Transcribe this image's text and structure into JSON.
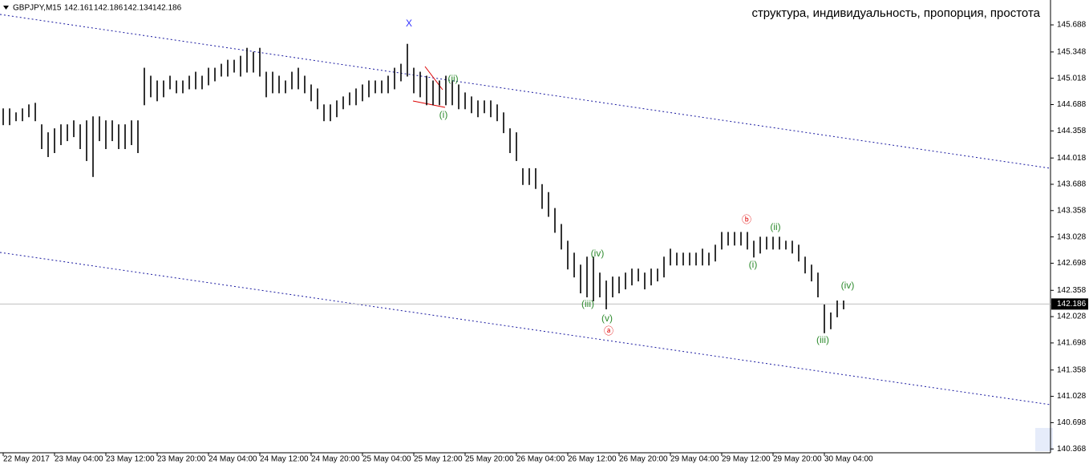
{
  "chart_data": {
    "type": "ohlc",
    "title": "структура, индивидуальность, пропорция, простота",
    "header": {
      "symbol": "GBPJPY,M15",
      "open": 142.161,
      "high": 142.186,
      "low": 142.134,
      "close": 142.186
    },
    "color": "#000000",
    "categories": [
      "22 May 2017",
      null,
      null,
      null,
      null,
      null,
      null,
      null,
      "23 May 04:00",
      null,
      null,
      null,
      null,
      null,
      null,
      null,
      "23 May 12:00",
      null,
      null,
      null,
      null,
      null,
      null,
      null,
      "23 May 20:00",
      null,
      null,
      null,
      null,
      null,
      null,
      null,
      "24 May 04:00",
      null,
      null,
      null,
      null,
      null,
      null,
      null,
      "24 May 12:00",
      null,
      null,
      null,
      null,
      null,
      null,
      null,
      "24 May 20:00",
      null,
      null,
      null,
      null,
      null,
      null,
      null,
      "25 May 04:00",
      null,
      null,
      null,
      null,
      null,
      null,
      null,
      "25 May 12:00",
      null,
      null,
      null,
      null,
      null,
      null,
      null,
      "25 May 20:00",
      null,
      null,
      null,
      null,
      null,
      null,
      null,
      "26 May 04:00",
      null,
      null,
      null,
      null,
      null,
      null,
      null,
      "26 May 12:00",
      null,
      null,
      null,
      null,
      null,
      null,
      null,
      "26 May 20:00",
      null,
      null,
      null,
      null,
      null,
      null,
      null,
      "29 May 04:00",
      null,
      null,
      null,
      null,
      null,
      null,
      null,
      "29 May 12:00",
      null,
      null,
      null,
      null,
      null,
      null,
      null,
      "29 May 20:00",
      null,
      null,
      null,
      null,
      null,
      null,
      null,
      "30 May 04:00",
      null,
      null,
      null
    ],
    "highs": [
      144.64,
      144.64,
      144.59,
      144.64,
      144.69,
      144.71,
      144.44,
      144.34,
      144.39,
      144.44,
      144.44,
      144.49,
      144.44,
      144.49,
      144.54,
      144.54,
      144.49,
      144.49,
      144.44,
      144.44,
      144.49,
      144.49,
      145.15,
      145.05,
      144.99,
      144.99,
      145.05,
      144.99,
      144.99,
      145.05,
      145.1,
      145.05,
      145.15,
      145.15,
      145.2,
      145.25,
      145.25,
      145.3,
      145.4,
      145.35,
      145.4,
      145.1,
      145.1,
      145.05,
      144.99,
      145.1,
      145.15,
      145.05,
      144.94,
      144.89,
      144.69,
      144.69,
      144.74,
      144.79,
      144.84,
      144.89,
      144.94,
      144.99,
      144.99,
      144.99,
      145.05,
      145.15,
      145.2,
      145.45,
      145.15,
      145.1,
      145.05,
      144.99,
      144.99,
      145.05,
      144.99,
      144.94,
      144.84,
      144.79,
      144.74,
      144.74,
      144.74,
      144.69,
      144.59,
      144.39,
      144.34,
      143.89,
      143.89,
      143.89,
      143.69,
      143.59,
      143.39,
      143.19,
      142.98,
      142.83,
      142.68,
      142.78,
      142.78,
      142.58,
      142.48,
      142.53,
      142.53,
      142.58,
      142.63,
      142.63,
      142.58,
      142.63,
      142.63,
      142.78,
      142.88,
      142.83,
      142.83,
      142.83,
      142.83,
      142.88,
      142.83,
      142.93,
      143.09,
      143.09,
      143.09,
      143.09,
      143.09,
      142.98,
      143.03,
      143.03,
      143.03,
      143.03,
      142.98,
      142.98,
      142.93,
      142.78,
      142.68,
      142.58,
      142.18,
      142.08,
      142.23,
      142.23
    ],
    "lows": [
      144.44,
      144.44,
      144.49,
      144.49,
      144.54,
      144.49,
      144.14,
      144.04,
      144.09,
      144.19,
      144.24,
      144.29,
      144.14,
      143.99,
      143.79,
      144.24,
      144.14,
      144.24,
      144.14,
      144.14,
      144.19,
      144.09,
      144.69,
      144.79,
      144.74,
      144.79,
      144.89,
      144.84,
      144.84,
      144.89,
      144.89,
      144.89,
      144.94,
      144.99,
      145.05,
      145.05,
      145.1,
      145.05,
      145.1,
      145.1,
      145.05,
      144.79,
      144.84,
      144.84,
      144.84,
      144.89,
      144.89,
      144.84,
      144.74,
      144.64,
      144.49,
      144.49,
      144.54,
      144.64,
      144.69,
      144.69,
      144.74,
      144.79,
      144.84,
      144.84,
      144.84,
      144.89,
      144.99,
      145.05,
      144.84,
      144.79,
      144.69,
      144.69,
      144.69,
      144.69,
      144.69,
      144.64,
      144.64,
      144.59,
      144.54,
      144.59,
      144.54,
      144.49,
      144.34,
      144.09,
      143.99,
      143.69,
      143.69,
      143.64,
      143.39,
      143.29,
      143.09,
      142.88,
      142.63,
      142.53,
      142.33,
      142.28,
      142.23,
      142.28,
      142.13,
      142.28,
      142.33,
      142.38,
      142.43,
      142.48,
      142.38,
      142.43,
      142.48,
      142.53,
      142.68,
      142.68,
      142.68,
      142.68,
      142.68,
      142.68,
      142.68,
      142.73,
      142.88,
      142.93,
      142.93,
      142.93,
      142.88,
      142.78,
      142.83,
      142.88,
      142.88,
      142.88,
      142.88,
      142.83,
      142.73,
      142.58,
      142.48,
      142.28,
      141.83,
      141.88,
      142.03,
      142.13
    ],
    "ylim": [
      140.32,
      146.0
    ],
    "yticks": [
      145.688,
      145.348,
      145.018,
      144.688,
      144.358,
      144.018,
      143.688,
      143.358,
      143.028,
      142.698,
      142.358,
      142.028,
      141.698,
      141.358,
      141.028,
      140.698,
      140.368
    ],
    "grid": false,
    "annotations": [
      {
        "text": "X",
        "color": "#3333ff"
      },
      {
        "text": "(i)",
        "color": "#2e8b2e"
      },
      {
        "text": "(ii)",
        "color": "#2e8b2e"
      },
      {
        "text": "(iii)",
        "color": "#2e8b2e"
      },
      {
        "text": "(iv)",
        "color": "#2e8b2e"
      },
      {
        "text": "(v)",
        "color": "#2e8b2e"
      },
      {
        "text": "ⓐ",
        "color": "#e00000"
      },
      {
        "text": "ⓑ",
        "color": "#e00000"
      },
      {
        "text": "(i)",
        "color": "#2e8b2e"
      },
      {
        "text": "(ii)",
        "color": "#2e8b2e"
      },
      {
        "text": "(iii)",
        "color": "#2e8b2e"
      },
      {
        "text": "(iv)",
        "color": "#2e8b2e"
      }
    ]
  }
}
